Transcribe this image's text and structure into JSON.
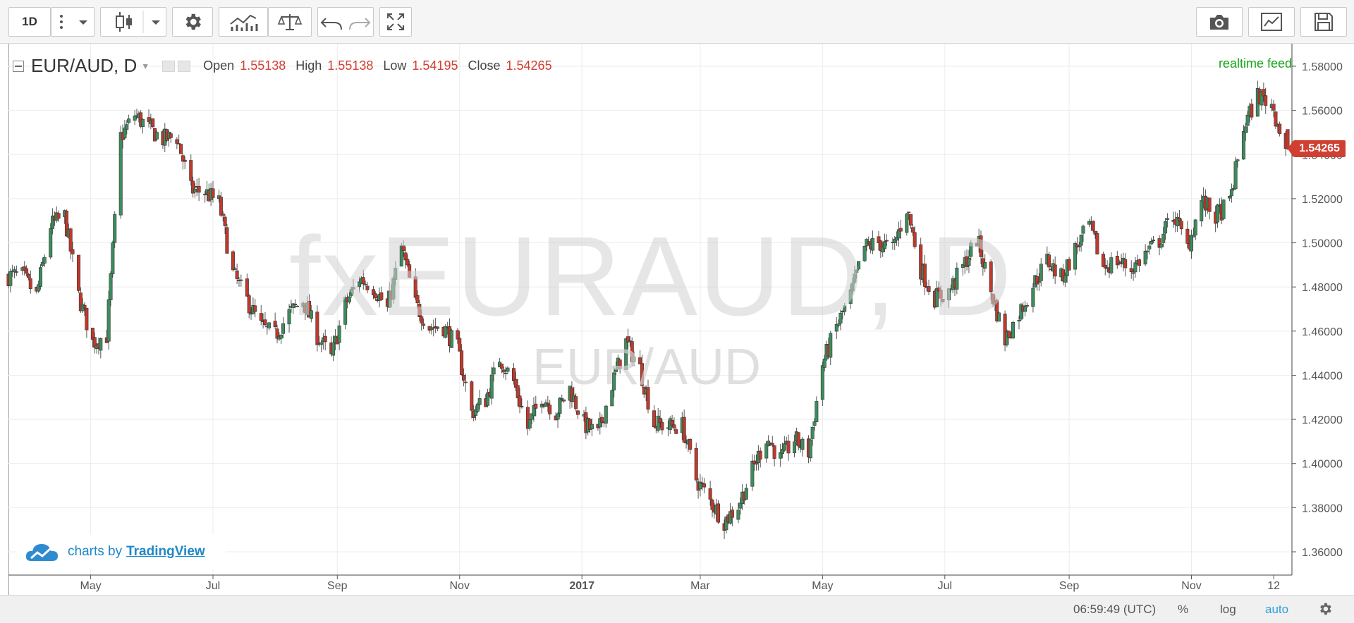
{
  "toolbar": {
    "interval": "1D",
    "buttons": [
      "more-icon",
      "dropdown-icon",
      "candles-icon",
      "dropdown-icon",
      "gear-icon",
      "indicators-icon",
      "compare-icon",
      "undo-icon",
      "redo-icon",
      "fullscreen-icon",
      "camera-icon",
      "chart-properties-icon",
      "save-icon"
    ]
  },
  "legend": {
    "symbol": "EUR/AUD, D",
    "open_label": "Open",
    "open": "1.55138",
    "high_label": "High",
    "high": "1.55138",
    "low_label": "Low",
    "low": "1.54195",
    "close_label": "Close",
    "close": "1.54265"
  },
  "realtime_label": "realtime feed",
  "watermark": {
    "line1": "fxEURAUD, D",
    "line2": "EUR/AUD"
  },
  "branding": {
    "prefix": "charts by",
    "name": "TradingView"
  },
  "last_price": "1.54265",
  "statusbar": {
    "time": "06:59:49 (UTC)",
    "percent": "%",
    "log": "log",
    "auto": "auto"
  },
  "colors": {
    "up": "#3d8c5e",
    "down": "#c0392b",
    "accent": "#d13f32",
    "feed": "#1aa51a",
    "link": "#1e88c8"
  },
  "chart_data": {
    "type": "candlestick",
    "symbol": "EUR/AUD",
    "interval": "D",
    "ylim": [
      1.35,
      1.585
    ],
    "y_ticks": [
      "1.58000",
      "1.56000",
      "1.54000",
      "1.52000",
      "1.50000",
      "1.48000",
      "1.46000",
      "1.44000",
      "1.42000",
      "1.40000",
      "1.38000",
      "1.36000"
    ],
    "x_ticks": [
      {
        "label": "May",
        "date": "2016-05-01"
      },
      {
        "label": "Jul",
        "date": "2016-07-01"
      },
      {
        "label": "Sep",
        "date": "2016-09-01"
      },
      {
        "label": "Nov",
        "date": "2016-11-01"
      },
      {
        "label": "2017",
        "date": "2017-01-01"
      },
      {
        "label": "Mar",
        "date": "2017-03-01"
      },
      {
        "label": "May",
        "date": "2017-05-01"
      },
      {
        "label": "Jul",
        "date": "2017-07-01"
      },
      {
        "label": "Sep",
        "date": "2017-09-01"
      },
      {
        "label": "Nov",
        "date": "2017-11-01"
      },
      {
        "label": "12",
        "date": "2017-12-12"
      }
    ],
    "x_range": [
      "2016-03-21",
      "2017-12-19"
    ],
    "close_path": [
      [
        "2016-03-21",
        1.485
      ],
      [
        "2016-03-28",
        1.485
      ],
      [
        "2016-04-04",
        1.476
      ],
      [
        "2016-04-11",
        1.508
      ],
      [
        "2016-04-18",
        1.512
      ],
      [
        "2016-04-25",
        1.476
      ],
      [
        "2016-05-02",
        1.455
      ],
      [
        "2016-05-09",
        1.458
      ],
      [
        "2016-05-16",
        1.548
      ],
      [
        "2016-05-23",
        1.558
      ],
      [
        "2016-05-30",
        1.552
      ],
      [
        "2016-06-06",
        1.547
      ],
      [
        "2016-06-13",
        1.548
      ],
      [
        "2016-06-20",
        1.524
      ],
      [
        "2016-06-27",
        1.523
      ],
      [
        "2016-07-04",
        1.518
      ],
      [
        "2016-07-11",
        1.486
      ],
      [
        "2016-07-18",
        1.474
      ],
      [
        "2016-07-25",
        1.462
      ],
      [
        "2016-08-01",
        1.458
      ],
      [
        "2016-08-08",
        1.468
      ],
      [
        "2016-08-15",
        1.474
      ],
      [
        "2016-08-22",
        1.458
      ],
      [
        "2016-08-29",
        1.448
      ],
      [
        "2016-09-05",
        1.472
      ],
      [
        "2016-09-12",
        1.484
      ],
      [
        "2016-09-19",
        1.48
      ],
      [
        "2016-09-26",
        1.47
      ],
      [
        "2016-10-03",
        1.498
      ],
      [
        "2016-10-10",
        1.472
      ],
      [
        "2016-10-17",
        1.462
      ],
      [
        "2016-10-24",
        1.462
      ],
      [
        "2016-10-31",
        1.452
      ],
      [
        "2016-11-07",
        1.423
      ],
      [
        "2016-11-14",
        1.429
      ],
      [
        "2016-11-21",
        1.448
      ],
      [
        "2016-11-28",
        1.437
      ],
      [
        "2016-12-05",
        1.416
      ],
      [
        "2016-12-12",
        1.431
      ],
      [
        "2016-12-19",
        1.423
      ],
      [
        "2016-12-26",
        1.434
      ],
      [
        "2017-01-02",
        1.418
      ],
      [
        "2017-01-09",
        1.413
      ],
      [
        "2017-01-16",
        1.436
      ],
      [
        "2017-01-23",
        1.455
      ],
      [
        "2017-01-30",
        1.443
      ],
      [
        "2017-02-06",
        1.418
      ],
      [
        "2017-02-13",
        1.417
      ],
      [
        "2017-02-20",
        1.417
      ],
      [
        "2017-02-27",
        1.393
      ],
      [
        "2017-03-06",
        1.383
      ],
      [
        "2017-03-13",
        1.374
      ],
      [
        "2017-03-20",
        1.381
      ],
      [
        "2017-03-27",
        1.397
      ],
      [
        "2017-04-03",
        1.412
      ],
      [
        "2017-04-10",
        1.402
      ],
      [
        "2017-04-17",
        1.411
      ],
      [
        "2017-04-24",
        1.405
      ],
      [
        "2017-05-01",
        1.445
      ],
      [
        "2017-05-08",
        1.462
      ],
      [
        "2017-05-15",
        1.476
      ],
      [
        "2017-05-22",
        1.498
      ],
      [
        "2017-05-29",
        1.5
      ],
      [
        "2017-06-05",
        1.497
      ],
      [
        "2017-06-12",
        1.516
      ],
      [
        "2017-06-19",
        1.488
      ],
      [
        "2017-06-26",
        1.475
      ],
      [
        "2017-07-03",
        1.478
      ],
      [
        "2017-07-10",
        1.489
      ],
      [
        "2017-07-17",
        1.502
      ],
      [
        "2017-07-24",
        1.478
      ],
      [
        "2017-07-31",
        1.456
      ],
      [
        "2017-08-07",
        1.468
      ],
      [
        "2017-08-14",
        1.481
      ],
      [
        "2017-08-21",
        1.492
      ],
      [
        "2017-08-28",
        1.484
      ],
      [
        "2017-09-04",
        1.497
      ],
      [
        "2017-09-11",
        1.508
      ],
      [
        "2017-09-18",
        1.489
      ],
      [
        "2017-09-25",
        1.492
      ],
      [
        "2017-10-02",
        1.488
      ],
      [
        "2017-10-09",
        1.495
      ],
      [
        "2017-10-16",
        1.501
      ],
      [
        "2017-10-23",
        1.513
      ],
      [
        "2017-10-30",
        1.498
      ],
      [
        "2017-11-06",
        1.519
      ],
      [
        "2017-11-13",
        1.512
      ],
      [
        "2017-11-20",
        1.518
      ],
      [
        "2017-11-27",
        1.552
      ],
      [
        "2017-12-04",
        1.567
      ],
      [
        "2017-12-11",
        1.563
      ],
      [
        "2017-12-18",
        1.543
      ]
    ],
    "last": {
      "date": "2017-12-19",
      "open": 1.55138,
      "high": 1.55138,
      "low": 1.54195,
      "close": 1.54265
    }
  }
}
